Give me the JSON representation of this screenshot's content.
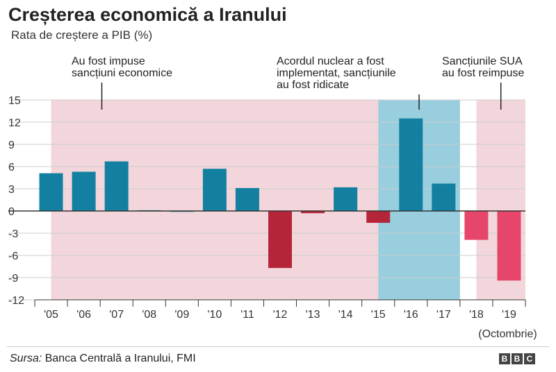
{
  "title": "Creșterea economică a Iranului",
  "subtitle": "Rata de creștere a PIB (%)",
  "source": {
    "label": "Sursa:",
    "text": "Banca Centrală a Iranului, FMI"
  },
  "logo": [
    "B",
    "B",
    "C"
  ],
  "colors": {
    "positive": "#1380a1",
    "negative_early": "#b5253a",
    "negative_late": "#e5466a",
    "sanctions_band": "#f2d6db",
    "lifted_band": "#98cede",
    "grid": "#cccccc",
    "zero_line": "#333333"
  },
  "chart_data": {
    "type": "bar",
    "title": "Creșterea economică a Iranului",
    "subtitle": "Rata de creștere a PIB (%)",
    "categories": [
      "'05",
      "'06",
      "'07",
      "'08",
      "'09",
      "'10",
      "'11",
      "'12",
      "'13",
      "'14",
      "'15",
      "'16",
      "'17",
      "'18",
      "'19"
    ],
    "values": [
      5.1,
      5.3,
      6.7,
      0.1,
      0.0,
      5.7,
      3.1,
      -7.7,
      -0.3,
      3.2,
      -1.6,
      12.5,
      3.7,
      -3.9,
      -9.4
    ],
    "bar_colors": [
      "positive",
      "positive",
      "positive",
      "positive",
      "positive",
      "positive",
      "positive",
      "negative_early",
      "negative_early",
      "positive",
      "negative_early",
      "positive",
      "positive",
      "negative_late",
      "negative_late"
    ],
    "ylim": [
      -12,
      15
    ],
    "yticks": [
      15,
      12,
      9,
      6,
      3,
      0,
      -3,
      -6,
      -9,
      -12
    ],
    "ytick_labels": [
      "15",
      "12",
      "9",
      "6",
      "3",
      "0",
      "-3",
      "-6",
      "-9",
      "-12"
    ],
    "grid": true,
    "xlabel": "",
    "ylabel": "",
    "note_19": "(Octombrie)",
    "bands": [
      {
        "name": "sanctions-imposed",
        "from": 0.5,
        "to": 10.5,
        "color": "sanctions_band"
      },
      {
        "name": "sanctions-lifted",
        "from": 10.5,
        "to": 13.0,
        "color": "lifted_band"
      },
      {
        "name": "sanctions-reimposed",
        "from": 13.5,
        "to": 15.0,
        "color": "sanctions_band"
      }
    ],
    "annotations": [
      {
        "name": "annotation-sanctions-imposed",
        "lines": [
          "Au fost impuse",
          "sancțiuni economice"
        ],
        "pointer_x": 2.05
      },
      {
        "name": "annotation-deal-implemented",
        "lines": [
          "Acordul nuclear a fost",
          "implementat, sancțiunile",
          "au fost ridicate"
        ],
        "pointer_x": 11.75
      },
      {
        "name": "annotation-sanctions-reimposed",
        "lines": [
          "Sancțiunile SUA",
          "au fost reimpuse"
        ],
        "pointer_x": 14.25
      }
    ]
  }
}
